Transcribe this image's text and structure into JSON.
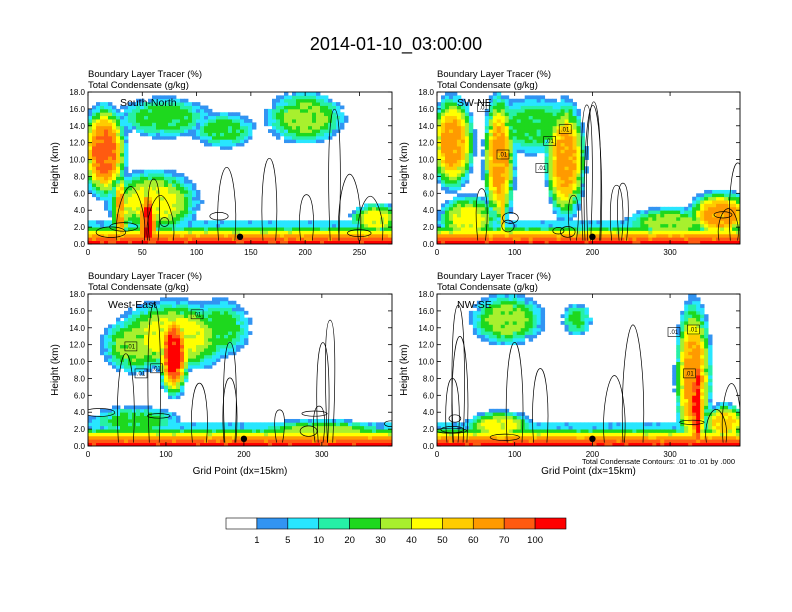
{
  "title": "2014-01-10_03:00:00",
  "contour_note": "Total Condensate Contours: .01 to .01 by .000",
  "colorbar": {
    "colors": [
      "#ffffff",
      "#3294f2",
      "#28e6ff",
      "#26f0a6",
      "#1ed81e",
      "#a8f02e",
      "#ffff00",
      "#ffcc00",
      "#ff9a00",
      "#ff5a10",
      "#ff0000"
    ],
    "labels": [
      "1",
      "5",
      "10",
      "20",
      "30",
      "40",
      "50",
      "60",
      "70",
      "100"
    ]
  },
  "chart_data": [
    {
      "type": "heatmap",
      "title": "Boundary Layer Tracer   (%)",
      "subtitle": "Total Condensate   (g/kg)",
      "panel_label": "South-North",
      "xlabel": "",
      "ylabel": "Height (km)",
      "xlim": [
        0,
        280
      ],
      "ylim": [
        0,
        18
      ],
      "xticks": [
        "0",
        "50",
        "100",
        "150",
        "200",
        "250"
      ],
      "xtick_values": [
        0,
        50,
        100,
        150,
        200,
        250
      ],
      "yticks": [
        "0.0",
        "2.0",
        "4.0",
        "6.0",
        "8.0",
        "10.0",
        "12.0",
        "14.0",
        "16.0",
        "18.0"
      ],
      "marker_x": 140,
      "contour_labels": []
    },
    {
      "type": "heatmap",
      "title": "Boundary Layer Tracer   (%)",
      "subtitle": "Total Condensate   (g/kg)",
      "panel_label": "SW-NE",
      "xlabel": "",
      "ylabel": "Height (km)",
      "xlim": [
        0,
        390
      ],
      "ylim": [
        0,
        18
      ],
      "xticks": [
        "0",
        "100",
        "200",
        "300"
      ],
      "xtick_values": [
        0,
        100,
        200,
        300
      ],
      "yticks": [
        "0.0",
        "2.0",
        "4.0",
        "6.0",
        "8.0",
        "10.0",
        "12.0",
        "14.0",
        "16.0",
        "18.0"
      ],
      "marker_x": 200,
      "contour_labels": [
        {
          "text": ".01",
          "x": 60,
          "y": 16.2
        },
        {
          "text": ".01",
          "x": 85,
          "y": 10.6
        },
        {
          "text": ".01",
          "x": 145,
          "y": 12.2
        },
        {
          "text": ".01",
          "x": 165,
          "y": 13.6
        },
        {
          "text": ".01",
          "x": 135,
          "y": 9.0
        }
      ]
    },
    {
      "type": "heatmap",
      "title": "Boundary Layer Tracer   (%)",
      "subtitle": "Total Condensate   (g/kg)",
      "panel_label": "West-East",
      "xlabel": "Grid Point (dx=15km)",
      "ylabel": "Height (km)",
      "xlim": [
        0,
        390
      ],
      "ylim": [
        0,
        18
      ],
      "xticks": [
        "0",
        "100",
        "200",
        "300"
      ],
      "xtick_values": [
        0,
        100,
        200,
        300
      ],
      "yticks": [
        "0.0",
        "2.0",
        "4.0",
        "6.0",
        "8.0",
        "10.0",
        "12.0",
        "14.0",
        "16.0",
        "18.0"
      ],
      "marker_x": 200,
      "contour_labels": [
        {
          "text": ".01",
          "x": 140,
          "y": 15.6
        },
        {
          "text": ".01",
          "x": 55,
          "y": 11.8
        },
        {
          "text": ".01",
          "x": 68,
          "y": 8.6
        },
        {
          "text": ".01",
          "x": 88,
          "y": 9.2
        }
      ]
    },
    {
      "type": "heatmap",
      "title": "Boundary Layer Tracer   (%)",
      "subtitle": "Total Condensate   (g/kg)",
      "panel_label": "NW-SE",
      "xlabel": "Grid Point (dx=15km)",
      "ylabel": "Height (km)",
      "xlim": [
        0,
        390
      ],
      "ylim": [
        0,
        18
      ],
      "xticks": [
        "0",
        "100",
        "200",
        "300"
      ],
      "xtick_values": [
        0,
        100,
        200,
        300
      ],
      "yticks": [
        "0.0",
        "2.0",
        "4.0",
        "6.0",
        "8.0",
        "10.0",
        "12.0",
        "14.0",
        "16.0",
        "18.0"
      ],
      "marker_x": 200,
      "contour_labels": [
        {
          "text": ".01",
          "x": 305,
          "y": 13.5
        },
        {
          "text": ".01",
          "x": 330,
          "y": 13.8
        },
        {
          "text": ".01",
          "x": 325,
          "y": 8.6
        }
      ]
    }
  ]
}
